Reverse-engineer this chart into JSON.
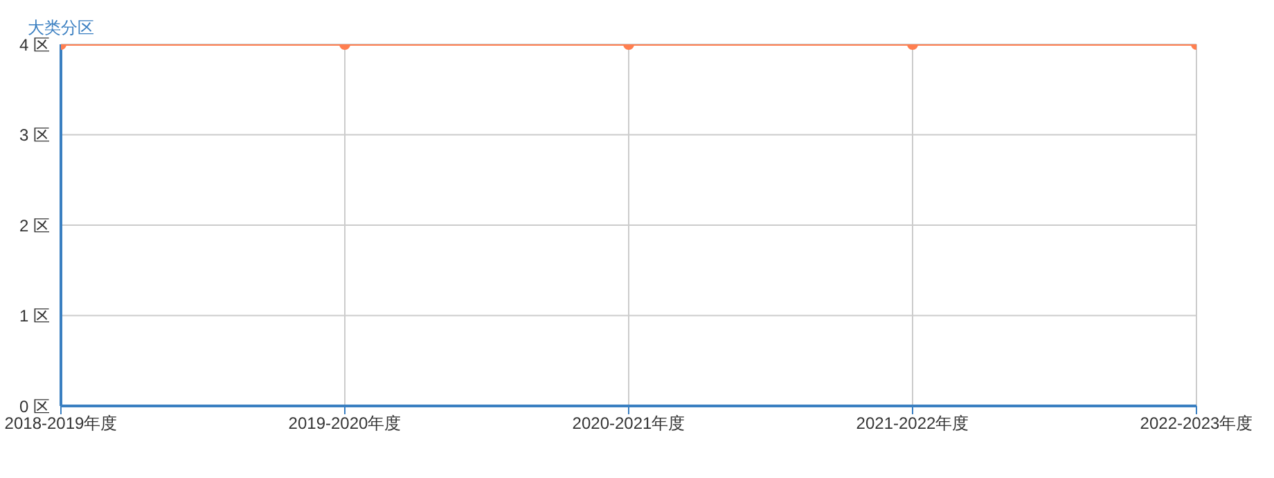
{
  "chart_data": {
    "type": "line",
    "ylabel": "大类分区",
    "categories": [
      "2018-2019年度",
      "2019-2020年度",
      "2020-2021年度",
      "2021-2022年度",
      "2022-2023年度"
    ],
    "series": [
      {
        "color": "#ff7f50",
        "values": [
          4,
          4,
          4,
          4,
          4
        ]
      }
    ],
    "ylim": [
      0,
      4
    ],
    "yticks": [
      {
        "value": 0,
        "label": "0 区"
      },
      {
        "value": 1,
        "label": "1 区"
      },
      {
        "value": 2,
        "label": "2 区"
      },
      {
        "value": 3,
        "label": "3 区"
      },
      {
        "value": 4,
        "label": "4 区"
      }
    ],
    "grid": true,
    "marker": "circle",
    "line_style": "solid"
  }
}
